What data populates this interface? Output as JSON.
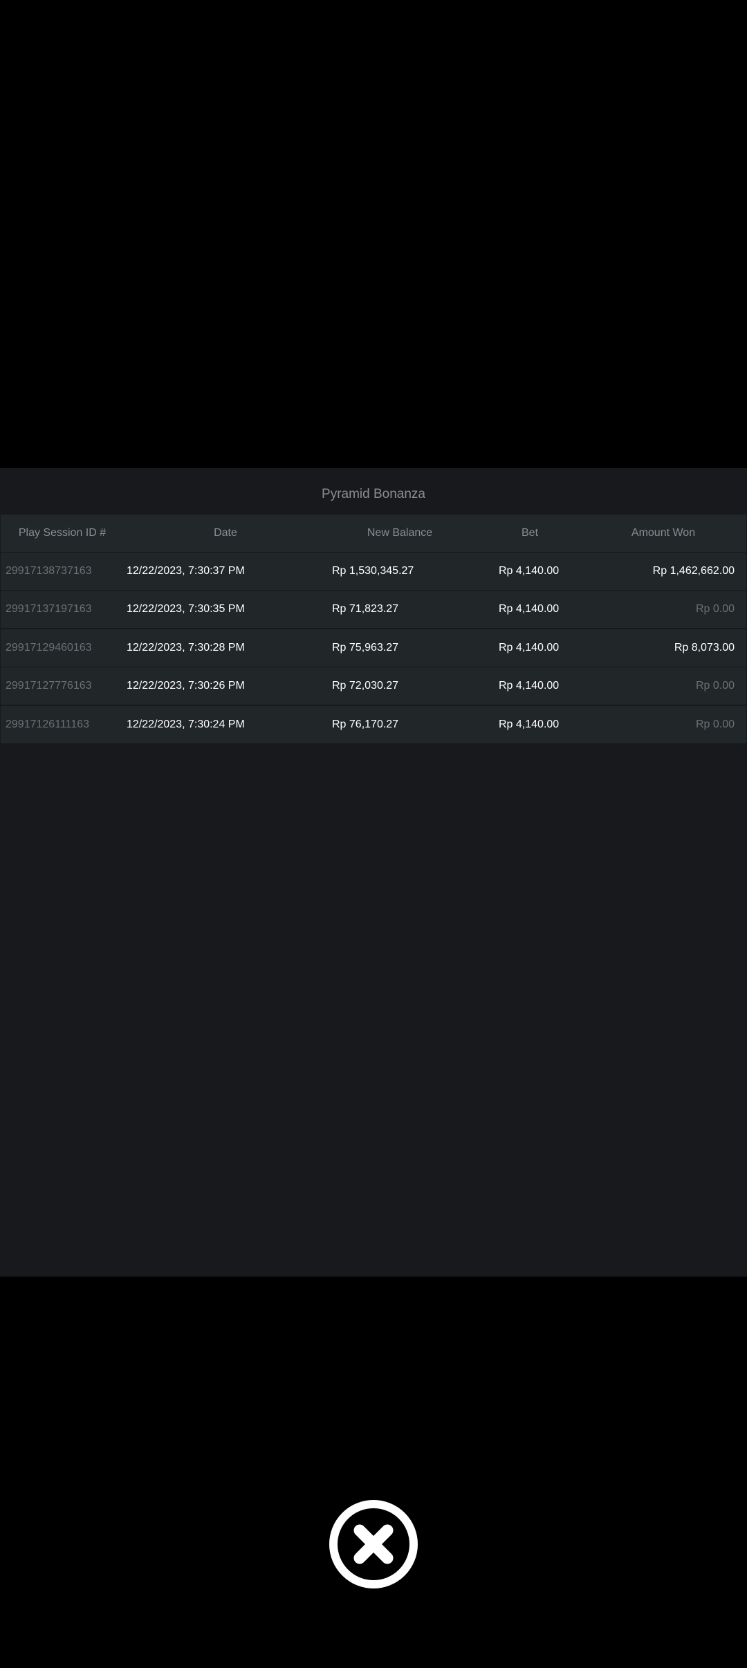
{
  "dialog": {
    "title": "Pyramid Bonanza",
    "columns": [
      "Play Session ID #",
      "Date",
      "New Balance",
      "Bet",
      "Amount Won"
    ],
    "rows": [
      {
        "id": "29917138737163",
        "date": "12/22/2023, 7:30:37 PM",
        "balance": "Rp 1,530,345.27",
        "bet": "Rp 4,140.00",
        "won": "Rp 1,462,662.00",
        "zero": false
      },
      {
        "id": "29917137197163",
        "date": "12/22/2023, 7:30:35 PM",
        "balance": "Rp 71,823.27",
        "bet": "Rp 4,140.00",
        "won": "Rp 0.00",
        "zero": true
      },
      {
        "id": "29917129460163",
        "date": "12/22/2023, 7:30:28 PM",
        "balance": "Rp 75,963.27",
        "bet": "Rp 4,140.00",
        "won": "Rp 8,073.00",
        "zero": false
      },
      {
        "id": "29917127776163",
        "date": "12/22/2023, 7:30:26 PM",
        "balance": "Rp 72,030.27",
        "bet": "Rp 4,140.00",
        "won": "Rp 0.00",
        "zero": true
      },
      {
        "id": "29917126111163",
        "date": "12/22/2023, 7:30:24 PM",
        "balance": "Rp 76,170.27",
        "bet": "Rp 4,140.00",
        "won": "Rp 0.00",
        "zero": true
      }
    ]
  },
  "close_button": {
    "icon": "close-circle-icon"
  }
}
